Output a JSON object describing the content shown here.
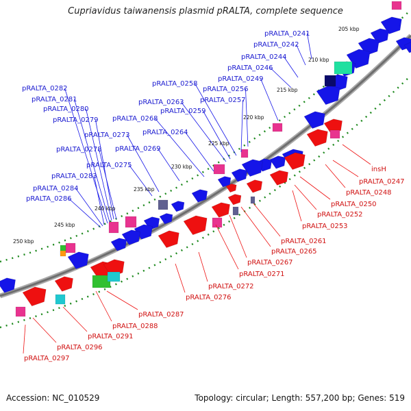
{
  "title": "Cupriavidus taiwanensis plasmid pRALTA, complete sequence",
  "accession": "Accession: NC_010529",
  "summary": "Topology: circular; Length: 557,200 bp; Genes: 519",
  "colors": {
    "forward": "#1515e8",
    "reverse": "#ee1010",
    "pink": "#e8338f",
    "teal": "#20e0a0",
    "green": "#30c030",
    "navy": "#0a0a6a",
    "slate": "#606090",
    "backbone": "#888888",
    "dots": "#1f8a1f"
  },
  "tick_labels": [
    "205 kbp",
    "210 kbp",
    "215 kbp",
    "220 kbp",
    "225 kbp",
    "230 kbp",
    "235 kbp",
    "240 kbp",
    "245 kbp",
    "250 kbp"
  ],
  "top_genes": [
    "pRALTA_0241",
    "pRALTA_0242",
    "pRALTA_0244",
    "pRALTA_0246",
    "pRALTA_0249",
    "pRALTA_0256",
    "pRALTA_0257",
    "pRALTA_0258",
    "pRALTA_0259",
    "pRALTA_0263",
    "pRALTA_0264",
    "pRALTA_0268",
    "pRALTA_0269",
    "pRALTA_0273",
    "pRALTA_0275",
    "pRALTA_0278",
    "pRALTA_0279",
    "pRALTA_0280",
    "pRALTA_0281",
    "pRALTA_0282",
    "pRALTA_0283",
    "pRALTA_0284",
    "pRALTA_0286"
  ],
  "bottom_genes": [
    "insH",
    "pRALTA_0247",
    "pRALTA_0248",
    "pRALTA_0250",
    "pRALTA_0252",
    "pRALTA_0253",
    "pRALTA_0261",
    "pRALTA_0265",
    "pRALTA_0267",
    "pRALTA_0271",
    "pRALTA_0272",
    "pRALTA_0276",
    "pRALTA_0287",
    "pRALTA_0288",
    "pRALTA_0291",
    "pRALTA_0296",
    "pRALTA_0297"
  ]
}
